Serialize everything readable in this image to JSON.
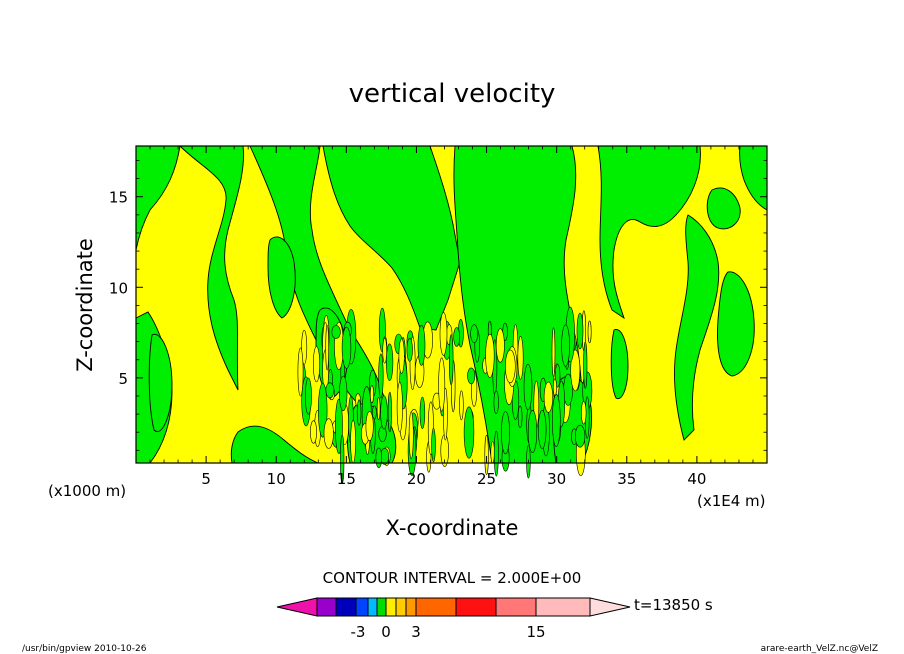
{
  "chart_data": {
    "type": "contour",
    "title": "vertical velocity",
    "xlabel": "X-coordinate",
    "ylabel": "Z-coordinate",
    "x_unit_note": "(x1E4 m)",
    "y_unit_note": "(x1000 m)",
    "x_ticks": [
      "5",
      "10",
      "15",
      "20",
      "25",
      "30",
      "35",
      "40"
    ],
    "x_tick_values": [
      5,
      10,
      15,
      20,
      25,
      30,
      35,
      40
    ],
    "y_ticks": [
      "5",
      "10",
      "15"
    ],
    "y_tick_values": [
      5,
      10,
      15
    ],
    "xlim": [
      0,
      45
    ],
    "ylim": [
      0.3,
      17.8
    ],
    "contour_interval_label": "CONTOUR INTERVAL = 2.000E+00",
    "time_label": "t=13850 s",
    "colorbar_labels": [
      "-3",
      "0",
      "3",
      "15"
    ],
    "colorbar_label_values": [
      -3,
      0,
      3,
      15
    ],
    "fill_colors": {
      "negative": "#00ee00",
      "positive": "#ffff00"
    },
    "colorbar_colors": [
      "#9900cc",
      "#0000bb",
      "#0044ff",
      "#00bbff",
      "#00dd00",
      "#ffee00",
      "#ffcc00",
      "#ff9900",
      "#ff6600",
      "#ff1111",
      "#ff7777",
      "#ffbbbb"
    ]
  },
  "footer": {
    "left": "/usr/bin/gpview   2010-10-26",
    "right": "arare-earth_VelZ.nc@VelZ"
  }
}
